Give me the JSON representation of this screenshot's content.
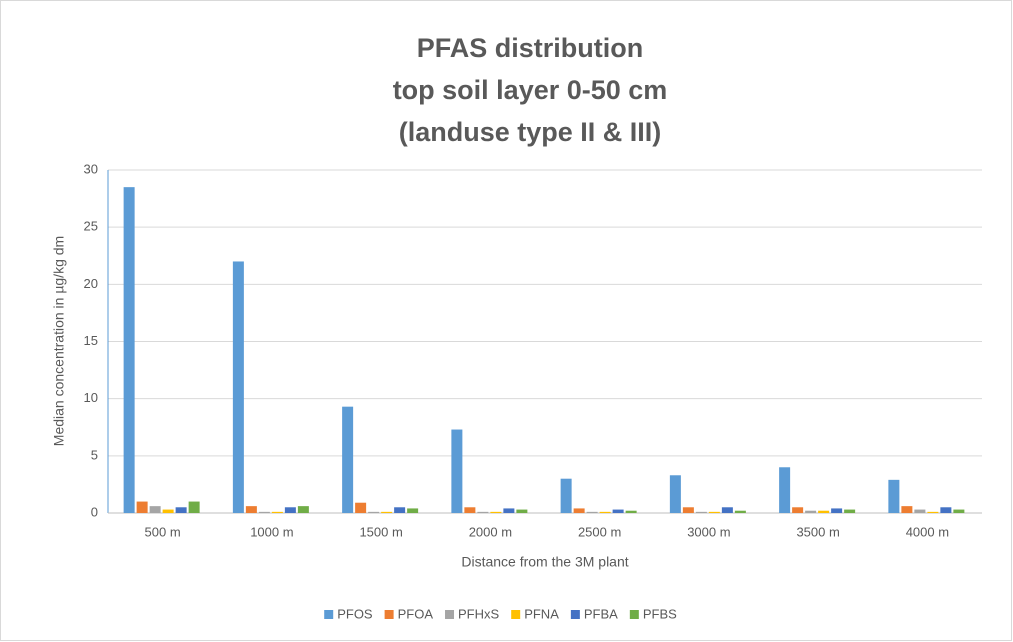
{
  "chart_data": {
    "type": "bar",
    "title": [
      "PFAS distribution",
      "top soil layer 0-50 cm",
      "(landuse type II & III)"
    ],
    "x_label": "Distance from the 3M plant",
    "y_label": "Median concentration in µg/kg dm",
    "categories": [
      "500 m",
      "1000 m",
      "1500 m",
      "2000 m",
      "2500 m",
      "3000 m",
      "3500 m",
      "4000 m"
    ],
    "series": [
      {
        "name": "PFOS",
        "color": "#5b9bd5",
        "values": [
          28.5,
          22,
          9.3,
          7.3,
          3.0,
          3.3,
          4.0,
          2.9
        ]
      },
      {
        "name": "PFOA",
        "color": "#ed7d31",
        "values": [
          1.0,
          0.6,
          0.9,
          0.5,
          0.4,
          0.5,
          0.5,
          0.6
        ]
      },
      {
        "name": "PFHxS",
        "color": "#a5a5a5",
        "values": [
          0.6,
          0.1,
          0.1,
          0.1,
          0.1,
          0.1,
          0.2,
          0.3
        ]
      },
      {
        "name": "PFNA",
        "color": "#ffc000",
        "values": [
          0.3,
          0.1,
          0.1,
          0.1,
          0.1,
          0.1,
          0.2,
          0.1
        ]
      },
      {
        "name": "PFBA",
        "color": "#4472c4",
        "values": [
          0.5,
          0.5,
          0.5,
          0.4,
          0.3,
          0.5,
          0.4,
          0.5
        ]
      },
      {
        "name": "PFBS",
        "color": "#70ad47",
        "values": [
          1.0,
          0.6,
          0.4,
          0.3,
          0.2,
          0.2,
          0.3,
          0.3
        ]
      }
    ],
    "ylim": [
      0,
      30
    ],
    "yticks": [
      0,
      5,
      10,
      15,
      20,
      25,
      30
    ],
    "grid": true,
    "legend": "bottom"
  }
}
